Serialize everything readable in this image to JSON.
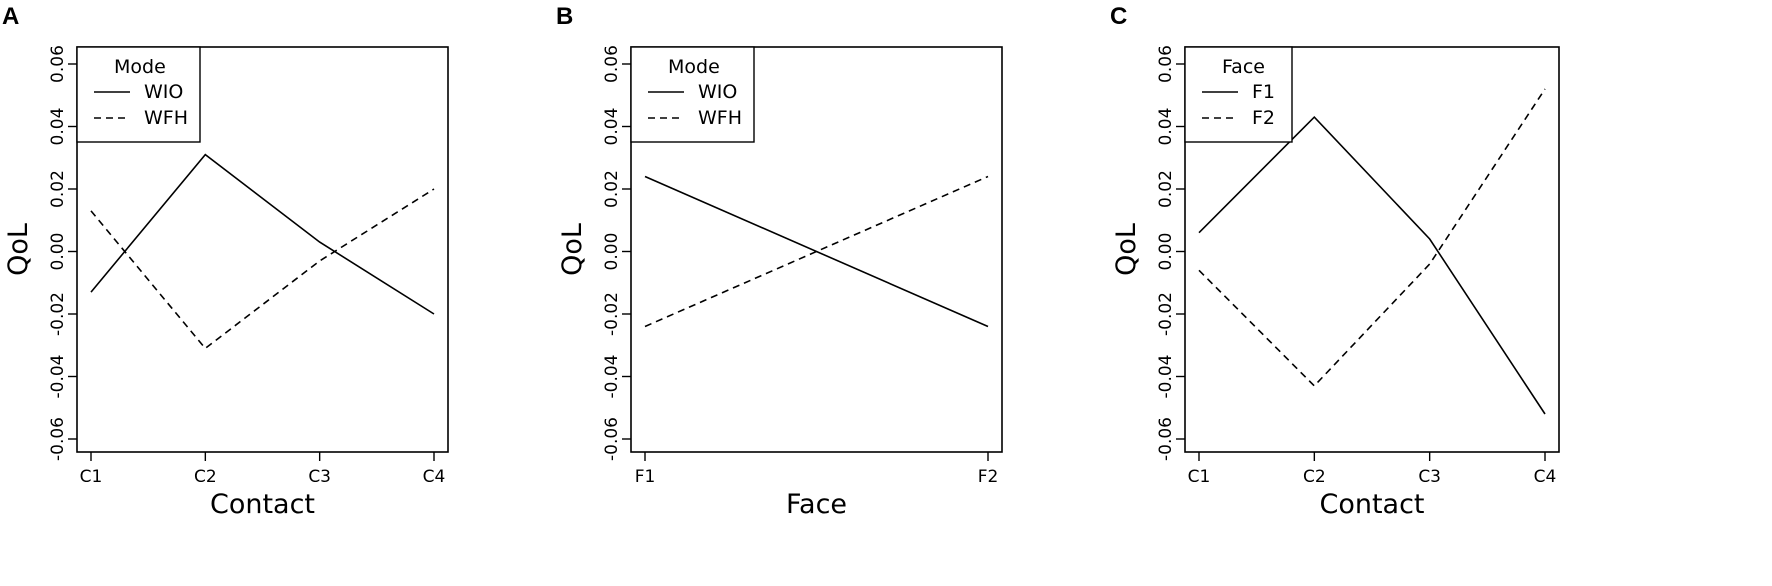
{
  "chart_data": [
    {
      "panel_label": "A",
      "type": "line",
      "xlabel": "Contact",
      "ylabel": "QoL",
      "categories": [
        "C1",
        "C2",
        "C3",
        "C4"
      ],
      "ylim": [
        -0.065,
        0.065
      ],
      "yticks": [
        "-0.06",
        "-0.04",
        "-0.02",
        "0.00",
        "0.02",
        "0.04",
        "0.06"
      ],
      "legend": {
        "title": "Mode",
        "position": "top-left"
      },
      "series": [
        {
          "name": "WIO",
          "style": "solid",
          "values": [
            -0.013,
            0.031,
            0.003,
            -0.02
          ]
        },
        {
          "name": "WFH",
          "style": "dashed",
          "values": [
            0.013,
            -0.031,
            -0.003,
            0.02
          ]
        }
      ]
    },
    {
      "panel_label": "B",
      "type": "line",
      "xlabel": "Face",
      "ylabel": "QoL",
      "categories": [
        "F1",
        "F2"
      ],
      "ylim": [
        -0.065,
        0.065
      ],
      "yticks": [
        "-0.06",
        "-0.04",
        "-0.02",
        "0.00",
        "0.02",
        "0.04",
        "0.06"
      ],
      "legend": {
        "title": "Mode",
        "position": "top-left"
      },
      "series": [
        {
          "name": "WIO",
          "style": "solid",
          "values": [
            0.024,
            -0.024
          ]
        },
        {
          "name": "WFH",
          "style": "dashed",
          "values": [
            -0.024,
            0.024
          ]
        }
      ]
    },
    {
      "panel_label": "C",
      "type": "line",
      "xlabel": "Contact",
      "ylabel": "QoL",
      "categories": [
        "C1",
        "C2",
        "C3",
        "C4"
      ],
      "ylim": [
        -0.065,
        0.065
      ],
      "yticks": [
        "-0.06",
        "-0.04",
        "-0.02",
        "0.00",
        "0.02",
        "0.04",
        "0.06"
      ],
      "legend": {
        "title": "Face",
        "position": "top-left"
      },
      "series": [
        {
          "name": "F1",
          "style": "solid",
          "values": [
            0.006,
            0.043,
            0.004,
            -0.052
          ]
        },
        {
          "name": "F2",
          "style": "dashed",
          "values": [
            -0.006,
            -0.043,
            -0.004,
            0.052
          ]
        }
      ]
    }
  ]
}
